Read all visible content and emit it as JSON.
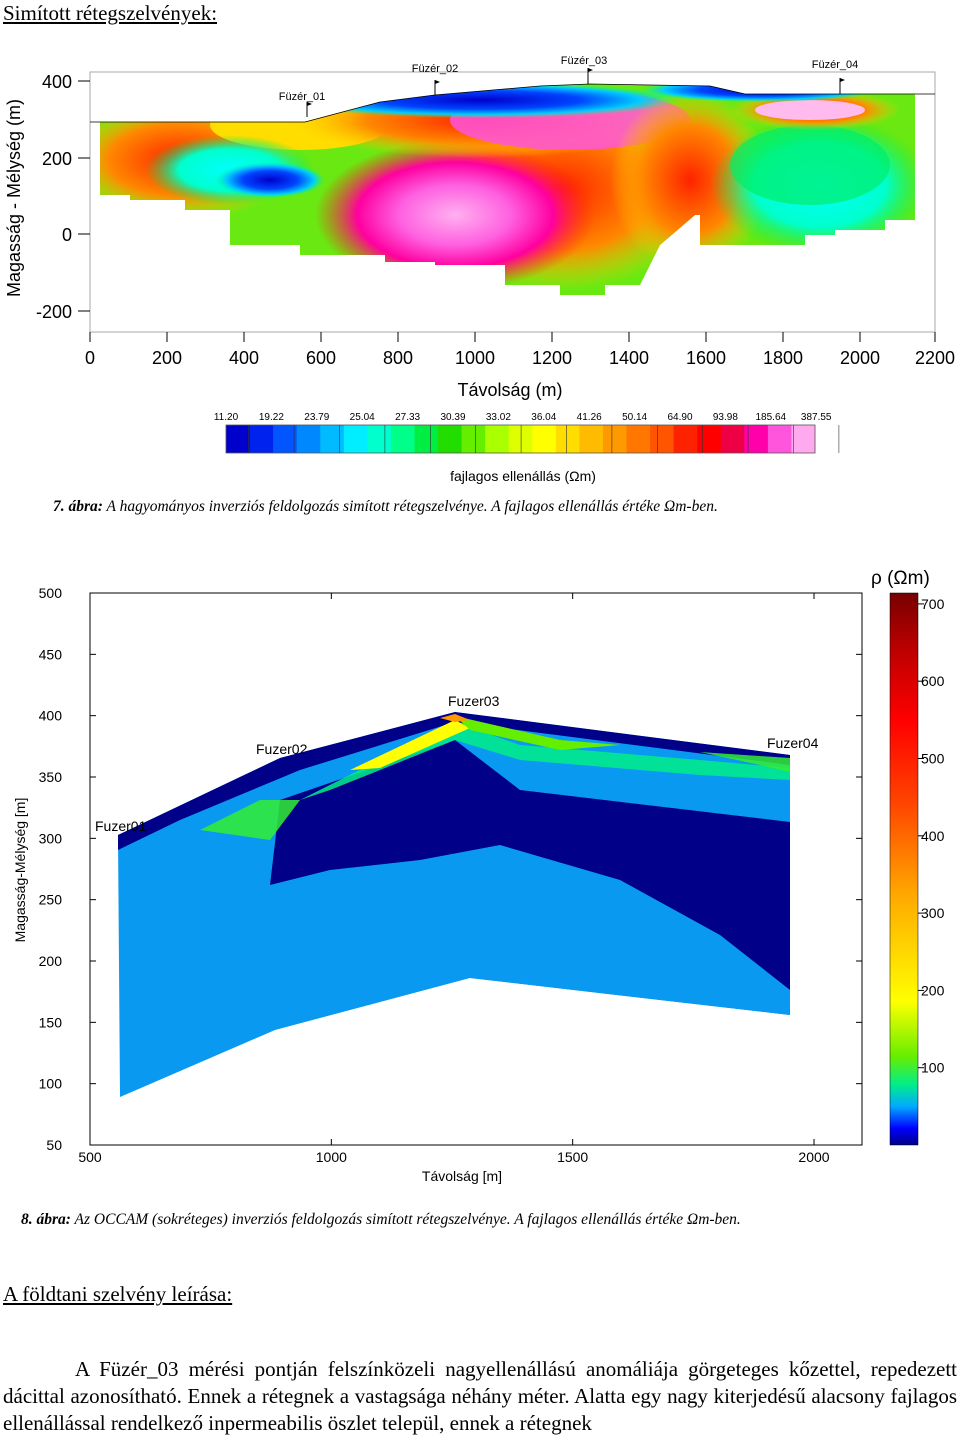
{
  "heading1": "Simított rétegszelvények:",
  "figure7": {
    "ylabel": "Magasság - Mélység (m)",
    "xlabel": "Távolság (m)",
    "xticks": [
      "0",
      "200",
      "400",
      "600",
      "800",
      "1000",
      "1200",
      "1400",
      "1600",
      "1800",
      "2000",
      "2200"
    ],
    "yticks": [
      "400",
      "200",
      "0",
      "-200"
    ],
    "stations": [
      "Füzér_01",
      "Füzér_02",
      "Füzér_03",
      "Füzér_04"
    ],
    "colorbar_ticks": [
      "11.20",
      "19.22",
      "23.79",
      "25.04",
      "27.33",
      "30.39",
      "33.02",
      "36.04",
      "41.26",
      "50.14",
      "64.90",
      "93.98",
      "185.64",
      "387.55"
    ],
    "colorbar_label": "fajlagos ellenállás (Ωm)",
    "colorbar_colors": [
      "#0000cc",
      "#0022ee",
      "#0055ff",
      "#0088ff",
      "#00bbff",
      "#00eeff",
      "#00ffcc",
      "#00ff88",
      "#00ee44",
      "#22dd00",
      "#66ee00",
      "#aaff00",
      "#ddff00",
      "#ffff00",
      "#ffdd00",
      "#ffbb00",
      "#ff9900",
      "#ff7700",
      "#ff5500",
      "#ff2200",
      "#ff0000",
      "#ee0044",
      "#ff00aa",
      "#ff55dd",
      "#ffaaee"
    ],
    "caption_prefix": "7. ábra:",
    "caption_text": " A hagyományos inverziós feldolgozás simított rétegszelvénye. A fajlagos ellenállás értéke Ωm-ben."
  },
  "figure8": {
    "ylabel": "Magasság-Mélység [m]",
    "xlabel": "Távolság [m]",
    "xticks": [
      "500",
      "1000",
      "1500",
      "2000"
    ],
    "yticks": [
      "500",
      "450",
      "400",
      "350",
      "300",
      "250",
      "200",
      "150",
      "100",
      "50"
    ],
    "stations": [
      "Fuzer01",
      "Fuzer02",
      "Fuzer03",
      "Fuzer04"
    ],
    "colorbar_title": "ρ (Ωm)",
    "colorbar_ticks": [
      "700",
      "600",
      "500",
      "400",
      "300",
      "200",
      "100"
    ],
    "caption_prefix": "8. ábra:",
    "caption_text": " Az OCCAM (sokréteges) inverziós feldolgozás simított rétegszelvénye. A fajlagos ellenállás értéke Ωm-ben."
  },
  "heading2": "A földtani szelvény leírása:",
  "paragraph": "A Füzér_03 mérési pontján felszínközeli nagyellenállású anomáliája görgeteges kőzettel, repedezett dácittal azonosítható. Ennek a rétegnek a vastagsága néhány méter. Alatta egy nagy kiterjedésű alacsony fajlagos ellenállással rendelkező inpermeabilis öszlet települ, ennek a rétegnek"
}
